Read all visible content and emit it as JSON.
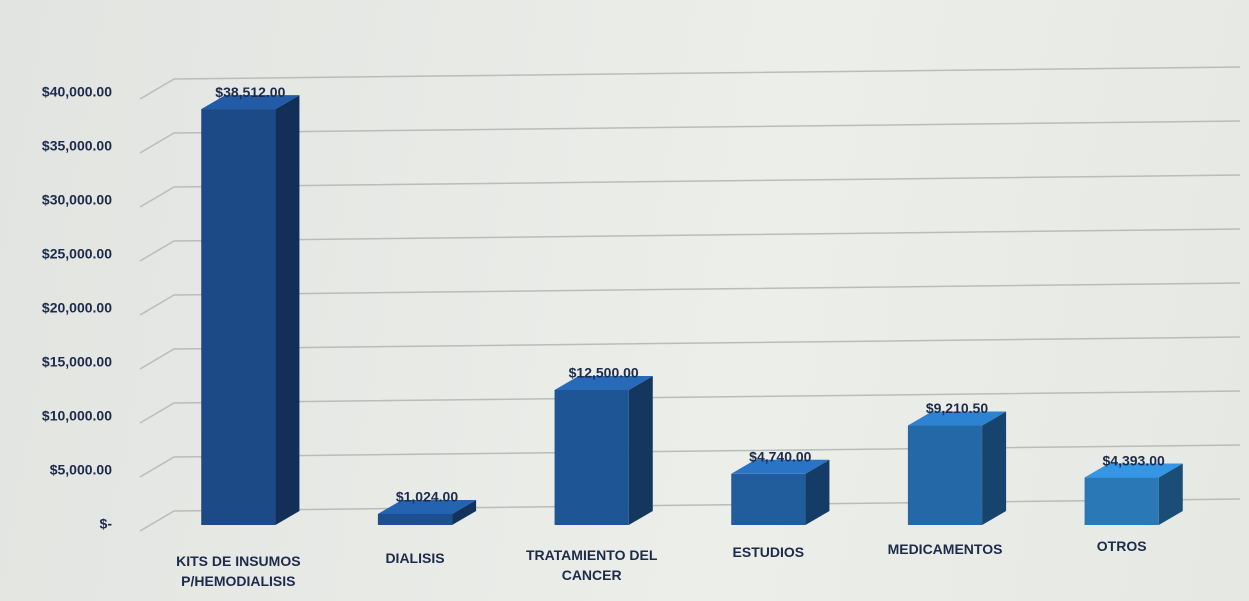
{
  "chart_data": {
    "type": "bar3d",
    "categories": [
      "KITS DE INSUMOS P/HEMODIALISIS",
      "DIALISIS",
      "TRATAMIENTO DEL CANCER",
      "ESTUDIOS",
      "MEDICAMENTOS",
      "OTROS"
    ],
    "values": [
      38512,
      1024,
      12500,
      4740,
      9210.5,
      4393
    ],
    "value_labels": [
      "$38,512.00",
      "$1,024.00",
      "$12,500.00",
      "$4,740.00",
      "$9,210.50",
      "$4,393.00"
    ],
    "colors": [
      "#1b4a86",
      "#1d4f8e",
      "#1e5594",
      "#215d9d",
      "#2468a8",
      "#2a78b6"
    ],
    "ylim": [
      0,
      45000
    ],
    "yticks": [
      {
        "value": 0,
        "label": "$-"
      },
      {
        "value": 5000,
        "label": "$5,000.00"
      },
      {
        "value": 10000,
        "label": "$10,000.00"
      },
      {
        "value": 15000,
        "label": "$15,000.00"
      },
      {
        "value": 20000,
        "label": "$20,000.00"
      },
      {
        "value": 25000,
        "label": "$25,000.00"
      },
      {
        "value": 30000,
        "label": "$30,000.00"
      },
      {
        "value": 35000,
        "label": "$35,000.00"
      },
      {
        "value": 40000,
        "label": "$40,000.00"
      }
    ],
    "grid": true
  }
}
